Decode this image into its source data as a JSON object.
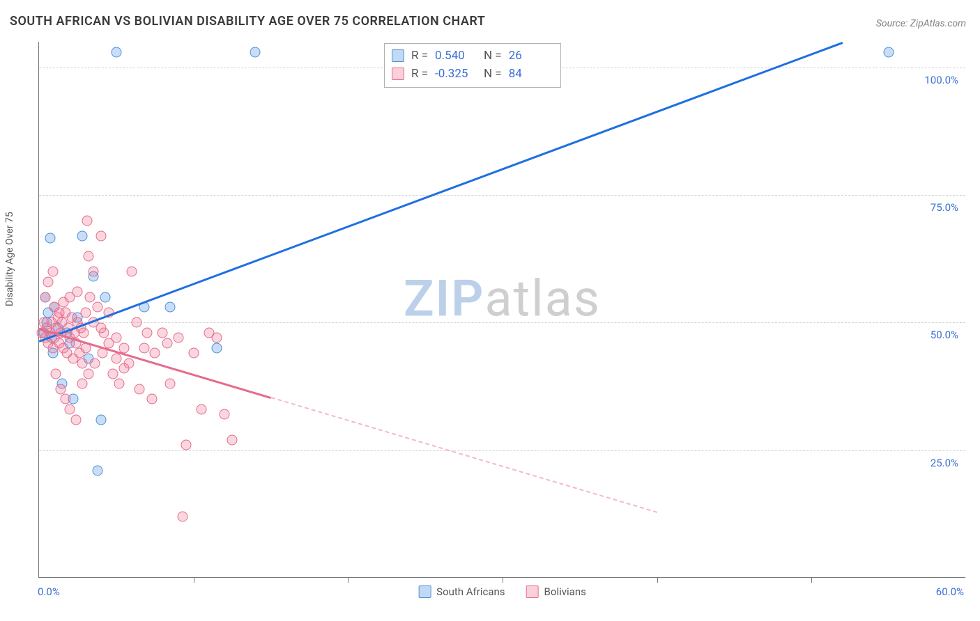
{
  "title": "SOUTH AFRICAN VS BOLIVIAN DISABILITY AGE OVER 75 CORRELATION CHART",
  "source": "Source: ZipAtlas.com",
  "ylabel": "Disability Age Over 75",
  "watermark": {
    "zip": "ZIP",
    "atlas": "atlas"
  },
  "chart": {
    "type": "scatter",
    "background_color": "#ffffff",
    "grid_color": "#d0d0d0",
    "axis_color": "#777777",
    "y_tick_color": "#3b6fd6",
    "x_tick_color": "#3b6fd6",
    "xlim": [
      0,
      60
    ],
    "ylim": [
      0,
      105
    ],
    "xticks_minor": [
      10,
      20,
      30,
      40,
      50
    ],
    "x_tick_labels": {
      "min": "0.0%",
      "max": "60.0%"
    },
    "y_gridlines": [
      25,
      50,
      75,
      100
    ],
    "y_tick_labels": [
      "25.0%",
      "50.0%",
      "75.0%",
      "100.0%"
    ],
    "series": [
      {
        "id": "south_africans",
        "label": "South Africans",
        "fill_color": "rgba(100,160,230,0.35)",
        "stroke_color": "#4a90d9",
        "marker_size": 15,
        "R": "0.540",
        "N": "26",
        "trend": {
          "x1": 0,
          "y1": 46.5,
          "x2": 52,
          "y2": 105,
          "color": "#1f6fe0",
          "width": 2.5
        },
        "points": [
          [
            0.3,
            48
          ],
          [
            0.5,
            50
          ],
          [
            0.8,
            47
          ],
          [
            1.0,
            53
          ],
          [
            1.2,
            49
          ],
          [
            0.7,
            66.5
          ],
          [
            1.8,
            48
          ],
          [
            2.0,
            46
          ],
          [
            2.5,
            51
          ],
          [
            2.8,
            67
          ],
          [
            3.2,
            43
          ],
          [
            3.5,
            59
          ],
          [
            4.0,
            31
          ],
          [
            4.3,
            55
          ],
          [
            5.0,
            103
          ],
          [
            6.8,
            53
          ],
          [
            8.5,
            53
          ],
          [
            11.5,
            45
          ],
          [
            3.8,
            21
          ],
          [
            2.2,
            35
          ],
          [
            1.5,
            38
          ],
          [
            0.9,
            44
          ],
          [
            0.6,
            52
          ],
          [
            14.0,
            103
          ],
          [
            55.0,
            103
          ],
          [
            0.4,
            55
          ]
        ]
      },
      {
        "id": "bolivians",
        "label": "Bolivians",
        "fill_color": "rgba(240,120,150,0.30)",
        "stroke_color": "#e56b8c",
        "marker_size": 15,
        "R": "-0.325",
        "N": "84",
        "trend_solid": {
          "x1": 0,
          "y1": 49,
          "x2": 15,
          "y2": 35.5,
          "color": "#e56b8c",
          "width": 2.5
        },
        "trend_dash": {
          "x1": 15,
          "y1": 35.5,
          "x2": 40,
          "y2": 13,
          "color": "#f4b8c6",
          "width": 2
        },
        "points": [
          [
            0.2,
            48
          ],
          [
            0.3,
            50
          ],
          [
            0.4,
            47
          ],
          [
            0.5,
            49
          ],
          [
            0.6,
            46
          ],
          [
            0.7,
            48
          ],
          [
            0.8,
            50
          ],
          [
            0.9,
            45
          ],
          [
            1.0,
            47
          ],
          [
            1.1,
            49
          ],
          [
            1.2,
            51
          ],
          [
            1.3,
            46
          ],
          [
            1.4,
            48
          ],
          [
            1.5,
            50
          ],
          [
            1.6,
            45
          ],
          [
            1.7,
            52
          ],
          [
            1.8,
            44
          ],
          [
            1.9,
            49
          ],
          [
            2.0,
            47
          ],
          [
            2.1,
            51
          ],
          [
            2.2,
            43
          ],
          [
            2.3,
            48
          ],
          [
            2.4,
            46
          ],
          [
            2.5,
            50
          ],
          [
            2.6,
            44
          ],
          [
            2.7,
            49
          ],
          [
            2.8,
            42
          ],
          [
            2.9,
            48
          ],
          [
            3.0,
            45
          ],
          [
            3.1,
            70
          ],
          [
            3.2,
            63
          ],
          [
            3.3,
            55
          ],
          [
            3.5,
            60
          ],
          [
            3.8,
            53
          ],
          [
            4.0,
            67
          ],
          [
            4.2,
            48
          ],
          [
            4.5,
            52
          ],
          [
            4.8,
            40
          ],
          [
            5.0,
            47
          ],
          [
            5.2,
            38
          ],
          [
            5.5,
            45
          ],
          [
            5.8,
            42
          ],
          [
            6.0,
            60
          ],
          [
            6.3,
            50
          ],
          [
            6.5,
            37
          ],
          [
            6.8,
            45
          ],
          [
            7.0,
            48
          ],
          [
            7.3,
            35
          ],
          [
            7.5,
            44
          ],
          [
            8.0,
            48
          ],
          [
            8.3,
            46
          ],
          [
            8.5,
            38
          ],
          [
            9.0,
            47
          ],
          [
            9.3,
            12
          ],
          [
            9.5,
            26
          ],
          [
            10.0,
            44
          ],
          [
            10.5,
            33
          ],
          [
            11.0,
            48
          ],
          [
            11.5,
            47
          ],
          [
            12.0,
            32
          ],
          [
            12.5,
            27
          ],
          [
            0.4,
            55
          ],
          [
            0.6,
            58
          ],
          [
            0.9,
            60
          ],
          [
            1.1,
            40
          ],
          [
            1.4,
            37
          ],
          [
            1.7,
            35
          ],
          [
            2.0,
            33
          ],
          [
            2.4,
            31
          ],
          [
            2.8,
            38
          ],
          [
            3.2,
            40
          ],
          [
            3.6,
            42
          ],
          [
            4.1,
            44
          ],
          [
            1.0,
            53
          ],
          [
            1.3,
            52
          ],
          [
            1.6,
            54
          ],
          [
            2.0,
            55
          ],
          [
            2.5,
            56
          ],
          [
            3.0,
            52
          ],
          [
            3.5,
            50
          ],
          [
            4.0,
            49
          ],
          [
            4.5,
            46
          ],
          [
            5.0,
            43
          ],
          [
            5.5,
            41
          ]
        ]
      }
    ]
  },
  "stats_labels": {
    "R": "R =",
    "N": "N ="
  },
  "legend": {
    "series1": "South Africans",
    "series2": "Bolivians"
  }
}
